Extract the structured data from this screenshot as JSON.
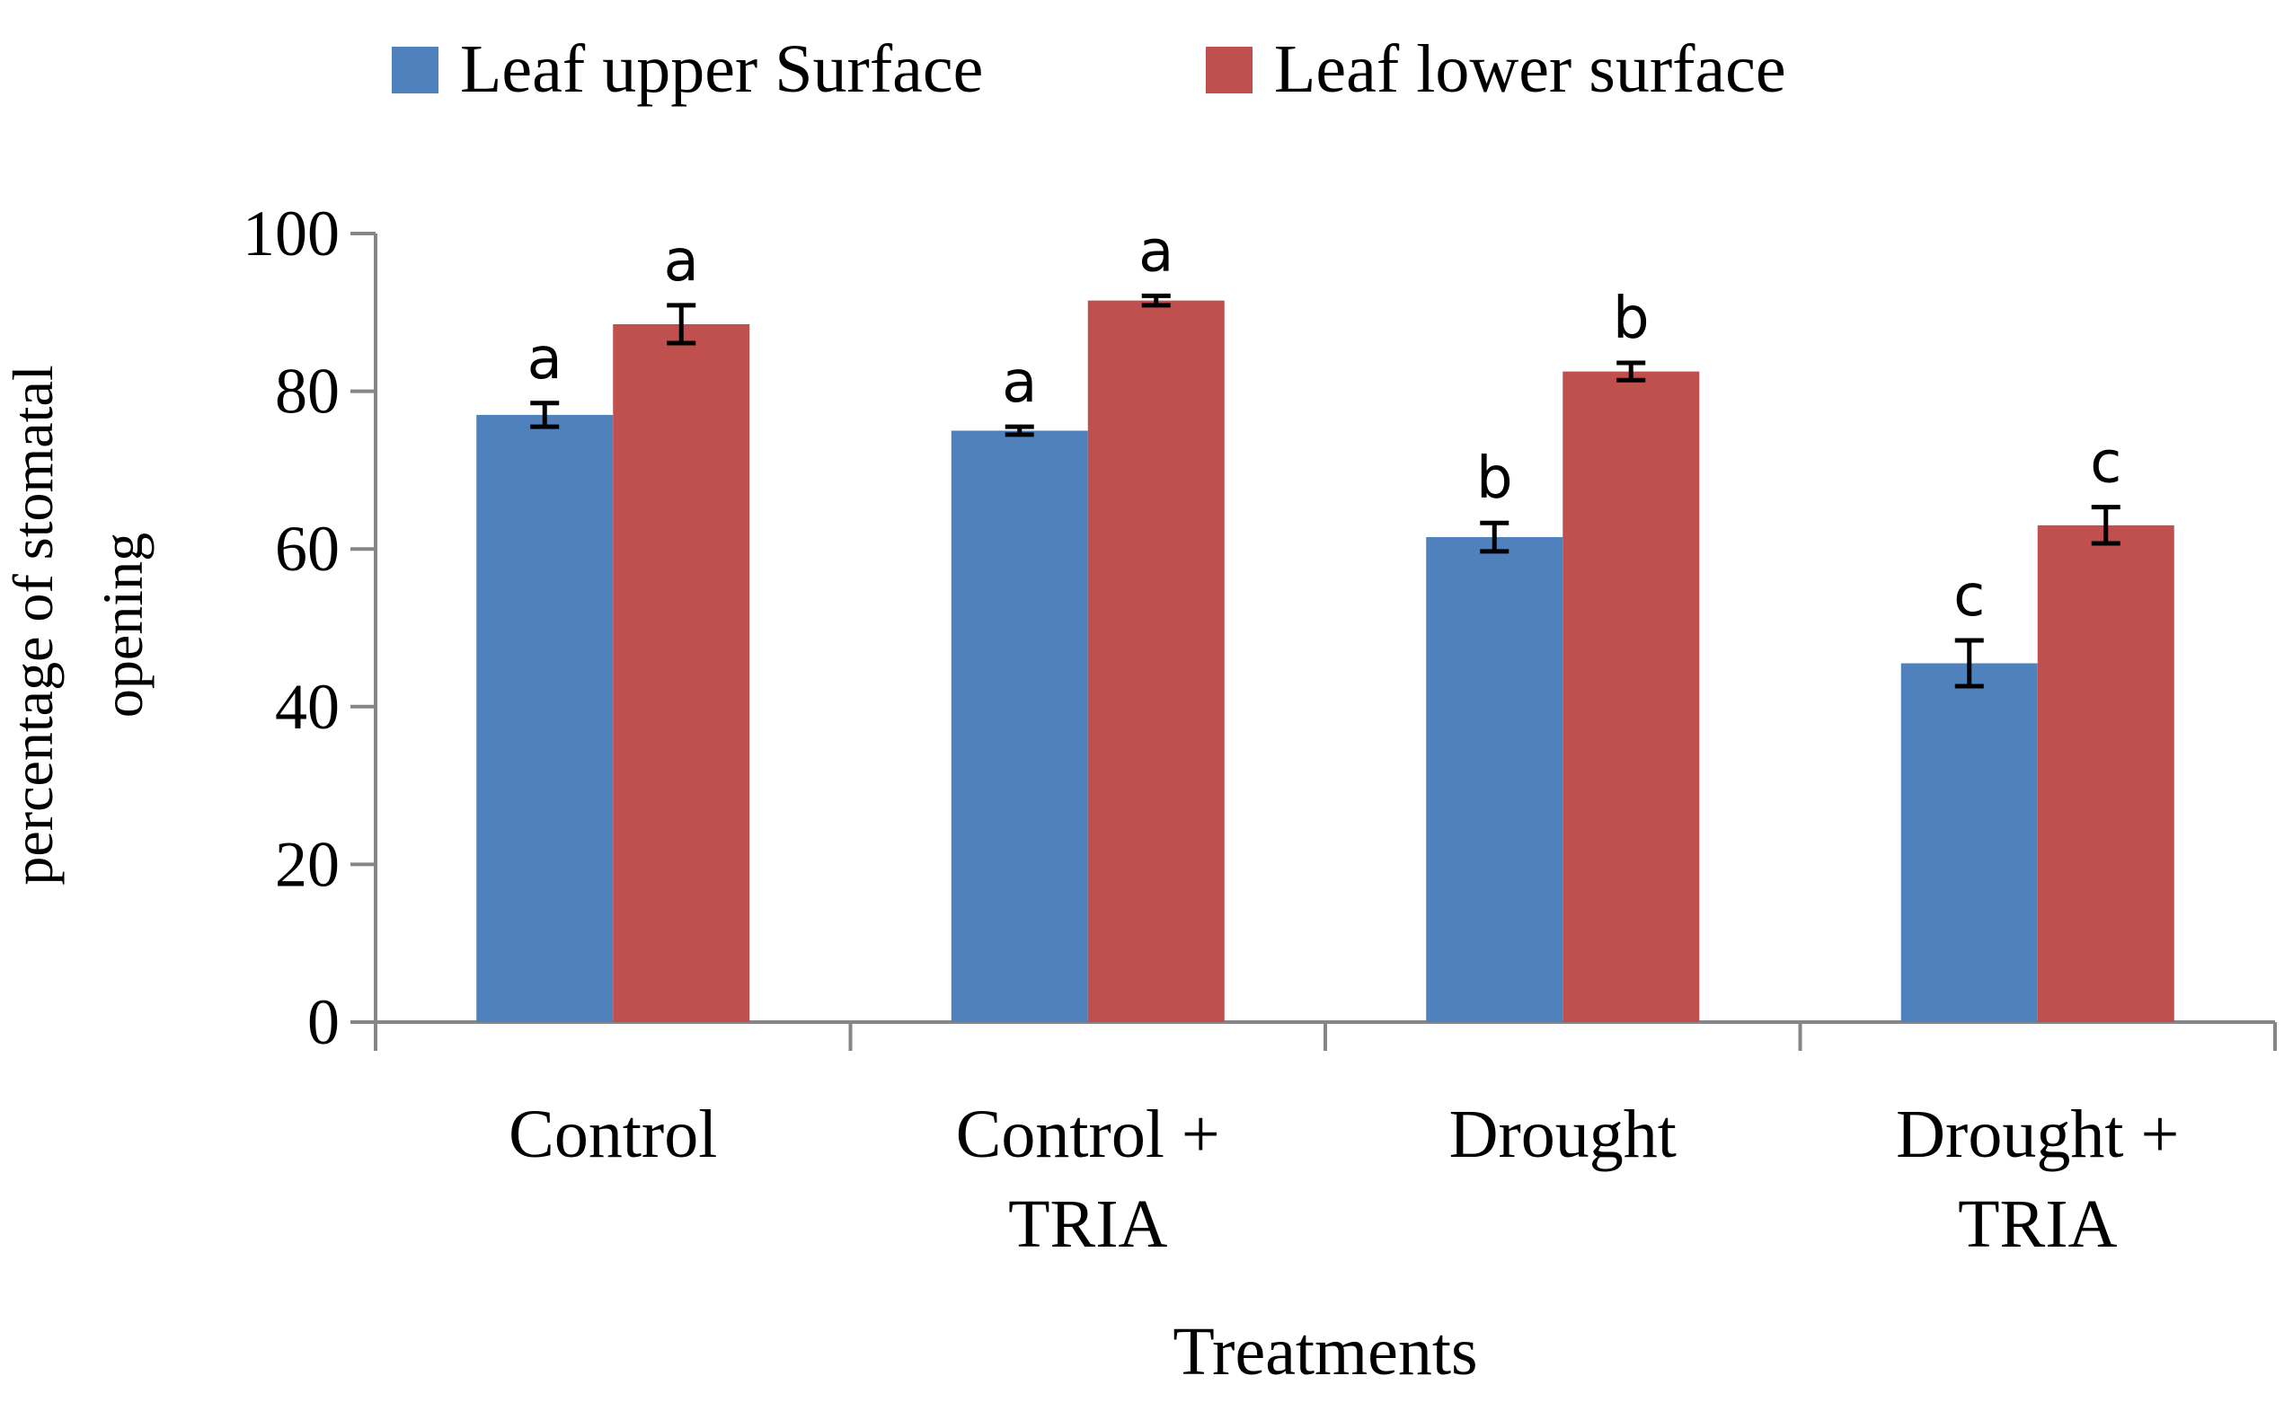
{
  "chart_data": {
    "type": "bar",
    "title": "",
    "xlabel": "Treatments",
    "ylabel": [
      "percentage of stomatal",
      "opening"
    ],
    "ylim": [
      0,
      100
    ],
    "yticks": [
      "0",
      "20",
      "40",
      "60",
      "80",
      "100"
    ],
    "categories": [
      [
        "Control"
      ],
      [
        "Control +",
        "TRIA"
      ],
      [
        "Drought"
      ],
      [
        "Drought +",
        "TRIA"
      ]
    ],
    "series": [
      {
        "name": "Leaf upper Surface",
        "color": "#4F81BD",
        "values": [
          77,
          75,
          61.5,
          45.5
        ],
        "errors": [
          1.5,
          0.5,
          1.8,
          2.9
        ],
        "letters": [
          "a",
          "a",
          "b",
          "c"
        ]
      },
      {
        "name": "Leaf lower surface",
        "color": "#C0504D",
        "values": [
          88.5,
          91.5,
          82.5,
          63
        ],
        "errors": [
          2.4,
          0.6,
          1.1,
          2.3
        ],
        "letters": [
          "a",
          "a",
          "b",
          "c"
        ]
      }
    ],
    "legend": "top-center",
    "grid": false
  }
}
